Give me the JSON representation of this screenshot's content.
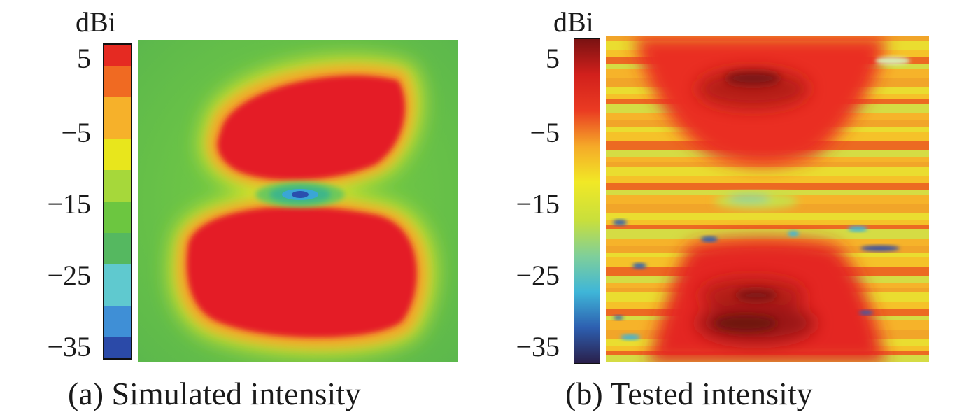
{
  "chart_data": [
    {
      "type": "heatmap",
      "title": "(a) Simulated intensity",
      "colorbar_label": "dBi",
      "colorbar_ticks": [
        "5",
        "−5",
        "−15",
        "−25",
        "−35"
      ],
      "colorbar_range": [
        -37,
        7
      ],
      "colormap": [
        "#2b4aa8",
        "#3f8fd6",
        "#5fc9cf",
        "#55b860",
        "#6cc640",
        "#a6d83a",
        "#e8e61c",
        "#f6b12a",
        "#f06a22",
        "#e52a22"
      ],
      "description_values": {
        "background_dBi": -12,
        "upper_lobe_dBi": 5,
        "lower_lobe_dBi": 5,
        "center_null_dBi": -30
      }
    },
    {
      "type": "heatmap",
      "title": "(b) Tested intensity",
      "colorbar_label": "dBi",
      "colorbar_ticks": [
        "5",
        "−5",
        "−15",
        "−25",
        "−35"
      ],
      "colorbar_range": [
        -37,
        7
      ],
      "colormap": [
        "#2a1f4a",
        "#2d5fb0",
        "#3fb6d8",
        "#7fcf9a",
        "#c8df3c",
        "#f1e826",
        "#f5a928",
        "#ea3b22",
        "#d2201c",
        "#7a1212"
      ],
      "description_values": {
        "background_dBi": -8,
        "upper_lobe_dBi": 3,
        "lower_lobe_dBi": 4,
        "waist_dBi": -12
      }
    }
  ]
}
